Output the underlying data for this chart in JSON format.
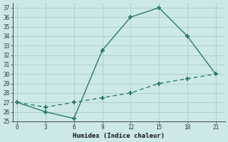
{
  "xlabel": "Humidex (Indice chaleur)",
  "line1_x": [
    0,
    3,
    6,
    9,
    12,
    15,
    18,
    21
  ],
  "line1_y": [
    27,
    26,
    25.3,
    32.5,
    36,
    37,
    34,
    30
  ],
  "line2_x": [
    0,
    3,
    6,
    9,
    12,
    15,
    18,
    21
  ],
  "line2_y": [
    27,
    26.5,
    27,
    27.5,
    28,
    29,
    29.5,
    30
  ],
  "color": "#2a7a6a",
  "bg_color": "#cce8e8",
  "grid_color": "#aacccc",
  "xlim": [
    -0.5,
    22
  ],
  "ylim": [
    25,
    37.5
  ],
  "xticks": [
    0,
    3,
    6,
    9,
    12,
    15,
    18,
    21
  ],
  "yticks": [
    25,
    26,
    27,
    28,
    29,
    30,
    31,
    32,
    33,
    34,
    35,
    36,
    37
  ],
  "marker": "+",
  "markersize": 5,
  "markeredgewidth": 1.5,
  "linewidth": 1.0,
  "tick_fontsize": 5.5,
  "xlabel_fontsize": 6.5
}
